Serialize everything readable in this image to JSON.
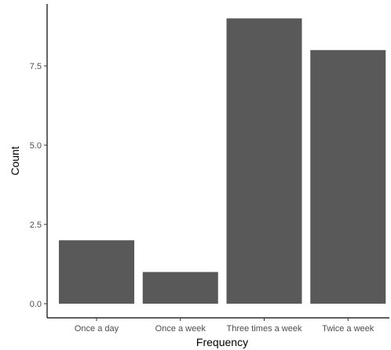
{
  "chart_data": {
    "type": "bar",
    "categories": [
      "Once a day",
      "Once a week",
      "Three times a week",
      "Twice a week"
    ],
    "values": [
      2,
      1,
      9,
      8
    ],
    "xlabel": "Frequency",
    "ylabel": "Count",
    "ylim": [
      0,
      9
    ],
    "yticks": [
      0,
      2.5,
      5,
      7.5
    ],
    "ytick_labels": [
      "0.0",
      "2.5",
      "5.0",
      "7.5"
    ],
    "bar_color": "#595959",
    "grid": false
  }
}
